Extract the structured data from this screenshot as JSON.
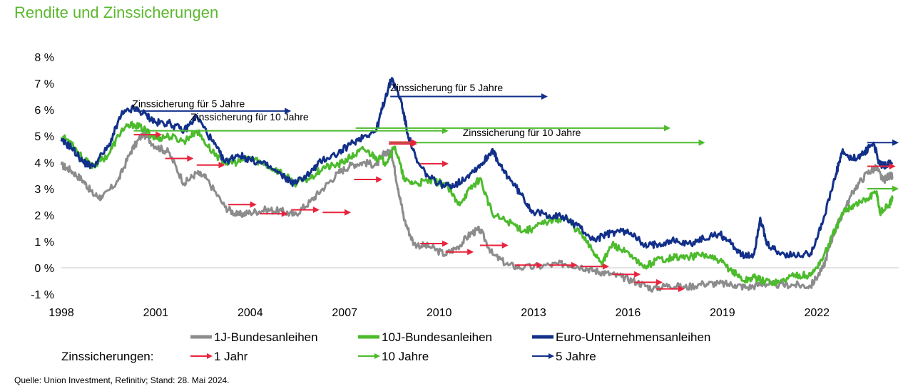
{
  "title": "Rendite und Zinssicherungen",
  "source": "Quelle: Union Investment, Refinitiv; Stand: 28. Mai 2024.",
  "legend": {
    "prefix": "Zinssicherungen:",
    "series": [
      "1J-Bundesanleihen",
      "10J-Bundesanleihen",
      "Euro-Unternehmensanleihen"
    ],
    "hedges": [
      "1 Jahr",
      "10 Jahre",
      "5 Jahre"
    ]
  },
  "colors": {
    "gray": "#8c8c8c",
    "green": "#4cbb2c",
    "blue": "#12308a",
    "red": "#e8233d",
    "title": "#5cb82e"
  },
  "chart_data": {
    "type": "line",
    "x_range": [
      1998,
      2024.6
    ],
    "ylim": [
      -1,
      8
    ],
    "x_ticks": [
      "1998",
      "2001",
      "2004",
      "2007",
      "2010",
      "2013",
      "2016",
      "2019",
      "2022"
    ],
    "x_tick_values": [
      1998,
      2001,
      2004,
      2007,
      2010,
      2013,
      2016,
      2019,
      2022
    ],
    "y_ticks": [
      "-1 %",
      "0 %",
      "1 %",
      "2 %",
      "3 %",
      "4 %",
      "5 %",
      "6 %",
      "7 %",
      "8 %"
    ],
    "y_tick_values": [
      -1,
      0,
      1,
      2,
      3,
      4,
      5,
      6,
      7,
      8
    ],
    "series": [
      {
        "name": "Euro-Unternehmensanleihen",
        "color": "#12308a",
        "points": [
          [
            1998,
            4.8
          ],
          [
            1998.3,
            4.6
          ],
          [
            1998.7,
            4.0
          ],
          [
            1999,
            3.85
          ],
          [
            1999.5,
            4.6
          ],
          [
            1999.9,
            5.8
          ],
          [
            2000.3,
            6.05
          ],
          [
            2000.7,
            5.8
          ],
          [
            2001,
            5.5
          ],
          [
            2001.4,
            5.5
          ],
          [
            2001.9,
            5.2
          ],
          [
            2002.3,
            5.75
          ],
          [
            2002.8,
            4.8
          ],
          [
            2003.2,
            4.0
          ],
          [
            2003.6,
            4.3
          ],
          [
            2004,
            4.1
          ],
          [
            2004.5,
            3.9
          ],
          [
            2005,
            3.5
          ],
          [
            2005.4,
            3.2
          ],
          [
            2005.9,
            3.6
          ],
          [
            2006.3,
            4.1
          ],
          [
            2006.8,
            4.35
          ],
          [
            2007.2,
            4.7
          ],
          [
            2007.6,
            5.0
          ],
          [
            2008,
            5.2
          ],
          [
            2008.3,
            6.5
          ],
          [
            2008.5,
            7.2
          ],
          [
            2008.8,
            6.3
          ],
          [
            2009,
            5.1
          ],
          [
            2009.3,
            4.0
          ],
          [
            2009.7,
            3.4
          ],
          [
            2010.2,
            3.1
          ],
          [
            2010.6,
            3.2
          ],
          [
            2011,
            3.6
          ],
          [
            2011.4,
            4.0
          ],
          [
            2011.7,
            4.5
          ],
          [
            2011.9,
            3.9
          ],
          [
            2012.3,
            3.3
          ],
          [
            2012.7,
            2.6
          ],
          [
            2013,
            2.1
          ],
          [
            2013.5,
            2.0
          ],
          [
            2014,
            1.9
          ],
          [
            2014.5,
            1.5
          ],
          [
            2014.9,
            1.05
          ],
          [
            2015.3,
            1.25
          ],
          [
            2015.7,
            1.4
          ],
          [
            2016.2,
            1.3
          ],
          [
            2016.5,
            0.8
          ],
          [
            2016.9,
            0.9
          ],
          [
            2017.4,
            1.05
          ],
          [
            2017.9,
            0.9
          ],
          [
            2018.4,
            1.1
          ],
          [
            2018.9,
            1.3
          ],
          [
            2019.3,
            0.9
          ],
          [
            2019.7,
            0.4
          ],
          [
            2020,
            0.5
          ],
          [
            2020.2,
            1.9
          ],
          [
            2020.4,
            0.9
          ],
          [
            2020.8,
            0.55
          ],
          [
            2021.3,
            0.45
          ],
          [
            2021.8,
            0.55
          ],
          [
            2022.2,
            1.8
          ],
          [
            2022.6,
            3.5
          ],
          [
            2022.8,
            4.4
          ],
          [
            2023.1,
            4.1
          ],
          [
            2023.5,
            4.35
          ],
          [
            2023.8,
            4.75
          ],
          [
            2024.0,
            3.9
          ],
          [
            2024.2,
            3.9
          ],
          [
            2024.4,
            4.0
          ]
        ]
      },
      {
        "name": "10J-Bundesanleihen",
        "color": "#4cbb2c",
        "points": [
          [
            1998,
            4.95
          ],
          [
            1998.3,
            4.8
          ],
          [
            1998.7,
            4.1
          ],
          [
            1999,
            3.85
          ],
          [
            1999.5,
            4.3
          ],
          [
            1999.9,
            5.2
          ],
          [
            2000.3,
            5.45
          ],
          [
            2000.7,
            5.2
          ],
          [
            2001,
            4.9
          ],
          [
            2001.4,
            5.0
          ],
          [
            2001.9,
            4.8
          ],
          [
            2002.3,
            5.2
          ],
          [
            2002.8,
            4.4
          ],
          [
            2003.2,
            4.0
          ],
          [
            2003.6,
            4.0
          ],
          [
            2004,
            4.2
          ],
          [
            2004.5,
            3.9
          ],
          [
            2005,
            3.6
          ],
          [
            2005.4,
            3.2
          ],
          [
            2005.9,
            3.4
          ],
          [
            2006.3,
            3.8
          ],
          [
            2006.8,
            3.9
          ],
          [
            2007.2,
            4.2
          ],
          [
            2007.6,
            4.5
          ],
          [
            2008,
            4.2
          ],
          [
            2008.3,
            4.0
          ],
          [
            2008.6,
            4.6
          ],
          [
            2008.9,
            3.3
          ],
          [
            2009.3,
            3.2
          ],
          [
            2009.7,
            3.3
          ],
          [
            2010.2,
            3.2
          ],
          [
            2010.6,
            2.4
          ],
          [
            2011,
            3.0
          ],
          [
            2011.3,
            3.4
          ],
          [
            2011.7,
            2.0
          ],
          [
            2012.3,
            1.7
          ],
          [
            2012.7,
            1.4
          ],
          [
            2013,
            1.5
          ],
          [
            2013.5,
            1.8
          ],
          [
            2014,
            1.9
          ],
          [
            2014.5,
            1.3
          ],
          [
            2014.9,
            0.6
          ],
          [
            2015.2,
            0.2
          ],
          [
            2015.5,
            0.9
          ],
          [
            2015.9,
            0.6
          ],
          [
            2016.5,
            0.0
          ],
          [
            2016.9,
            0.3
          ],
          [
            2017.4,
            0.4
          ],
          [
            2017.9,
            0.4
          ],
          [
            2018.4,
            0.5
          ],
          [
            2018.9,
            0.25
          ],
          [
            2019.3,
            -0.1
          ],
          [
            2019.7,
            -0.5
          ],
          [
            2020,
            -0.35
          ],
          [
            2020.3,
            -0.5
          ],
          [
            2020.8,
            -0.55
          ],
          [
            2021.3,
            -0.25
          ],
          [
            2021.8,
            -0.3
          ],
          [
            2022.2,
            0.4
          ],
          [
            2022.6,
            1.5
          ],
          [
            2022.9,
            2.2
          ],
          [
            2023.2,
            2.4
          ],
          [
            2023.6,
            2.6
          ],
          [
            2023.9,
            2.9
          ],
          [
            2024.0,
            2.1
          ],
          [
            2024.3,
            2.4
          ],
          [
            2024.4,
            2.6
          ]
        ]
      },
      {
        "name": "1J-Bundesanleihen",
        "color": "#8c8c8c",
        "points": [
          [
            1998,
            3.9
          ],
          [
            1998.3,
            3.7
          ],
          [
            1998.7,
            3.3
          ],
          [
            1999,
            2.8
          ],
          [
            1999.3,
            2.65
          ],
          [
            1999.8,
            3.3
          ],
          [
            2000.2,
            4.4
          ],
          [
            2000.6,
            5.1
          ],
          [
            2001,
            4.6
          ],
          [
            2001.4,
            4.4
          ],
          [
            2001.9,
            3.2
          ],
          [
            2002.3,
            3.6
          ],
          [
            2002.6,
            3.4
          ],
          [
            2003.2,
            2.3
          ],
          [
            2003.6,
            2.0
          ],
          [
            2004,
            2.1
          ],
          [
            2004.5,
            2.2
          ],
          [
            2005,
            2.15
          ],
          [
            2005.4,
            2.0
          ],
          [
            2005.9,
            2.5
          ],
          [
            2006.3,
            3.0
          ],
          [
            2006.8,
            3.6
          ],
          [
            2007.2,
            3.9
          ],
          [
            2007.6,
            4.0
          ],
          [
            2008,
            3.9
          ],
          [
            2008.3,
            4.4
          ],
          [
            2008.5,
            4.3
          ],
          [
            2008.7,
            3.0
          ],
          [
            2008.9,
            1.8
          ],
          [
            2009.2,
            0.9
          ],
          [
            2009.7,
            0.8
          ],
          [
            2010.2,
            0.5
          ],
          [
            2010.6,
            0.8
          ],
          [
            2011,
            1.3
          ],
          [
            2011.3,
            1.45
          ],
          [
            2011.7,
            0.5
          ],
          [
            2012.2,
            0.1
          ],
          [
            2012.7,
            0.0
          ],
          [
            2013.5,
            0.1
          ],
          [
            2014,
            0.15
          ],
          [
            2014.5,
            0.05
          ],
          [
            2014.9,
            -0.1
          ],
          [
            2015.3,
            -0.2
          ],
          [
            2015.8,
            -0.35
          ],
          [
            2016.3,
            -0.55
          ],
          [
            2016.8,
            -0.8
          ],
          [
            2017.3,
            -0.65
          ],
          [
            2017.8,
            -0.75
          ],
          [
            2018.4,
            -0.6
          ],
          [
            2018.9,
            -0.6
          ],
          [
            2019.4,
            -0.65
          ],
          [
            2019.8,
            -0.75
          ],
          [
            2020.3,
            -0.6
          ],
          [
            2020.8,
            -0.65
          ],
          [
            2021.3,
            -0.65
          ],
          [
            2021.8,
            -0.7
          ],
          [
            2022.2,
            0.0
          ],
          [
            2022.5,
            1.2
          ],
          [
            2022.8,
            2.0
          ],
          [
            2023.2,
            3.0
          ],
          [
            2023.6,
            3.6
          ],
          [
            2023.9,
            3.8
          ],
          [
            2024.1,
            3.3
          ],
          [
            2024.3,
            3.5
          ],
          [
            2024.4,
            3.45
          ]
        ]
      }
    ],
    "annotations": [
      {
        "text": "Zinssicherung für 5 Jahre",
        "x": 2000.25,
        "y": 6.1,
        "color": "#000000"
      },
      {
        "text": "Zinssicherung für 10 Jahre",
        "x": 2002.1,
        "y": 5.6,
        "color": "#000000"
      },
      {
        "text": "Zinssicherung für 5 Jahre",
        "x": 2008.45,
        "y": 6.7,
        "color": "#000000"
      },
      {
        "text": "Zinssicherung für 10 Jahre",
        "x": 2010.75,
        "y": 5.0,
        "color": "#000000"
      }
    ],
    "hedge_arrows": [
      {
        "kind": "5 Jahre",
        "color": "#12308a",
        "x1": 2000.3,
        "x2": 2005.3,
        "y": 5.95
      },
      {
        "kind": "10 Jahre",
        "color": "#4cbb2c",
        "x1": 2000.3,
        "x2": 2010.3,
        "y": 5.2
      },
      {
        "kind": "5 Jahre",
        "color": "#12308a",
        "x1": 2008.45,
        "x2": 2013.45,
        "y": 6.5
      },
      {
        "kind": "10 Jahre",
        "color": "#4cbb2c",
        "x1": 2007.35,
        "x2": 2017.35,
        "y": 5.3
      },
      {
        "kind": "10 Jahre",
        "color": "#4cbb2c",
        "x1": 2008.45,
        "x2": 2018.45,
        "y": 4.75
      },
      {
        "kind": "5 Jahre",
        "color": "#12308a",
        "x1": 2023.6,
        "x2": 2024.6,
        "y": 4.75
      },
      {
        "kind": "10 Jahre",
        "color": "#4cbb2c",
        "x1": 2023.6,
        "x2": 2024.6,
        "y": 3.0
      },
      {
        "kind": "1 Jahr",
        "color": "#e8233d",
        "x1": 2000.3,
        "x2": 2001.2,
        "y": 5.05
      },
      {
        "kind": "1 Jahr",
        "color": "#e8233d",
        "x1": 2001.3,
        "x2": 2002.2,
        "y": 4.15
      },
      {
        "kind": "1 Jahr",
        "color": "#e8233d",
        "x1": 2002.3,
        "x2": 2003.2,
        "y": 3.9
      },
      {
        "kind": "1 Jahr",
        "color": "#e8233d",
        "x1": 2003.3,
        "x2": 2004.2,
        "y": 2.4
      },
      {
        "kind": "1 Jahr",
        "color": "#e8233d",
        "x1": 2004.3,
        "x2": 2005.2,
        "y": 2.05
      },
      {
        "kind": "1 Jahr",
        "color": "#e8233d",
        "x1": 2005.3,
        "x2": 2006.2,
        "y": 2.2
      },
      {
        "kind": "1 Jahr",
        "color": "#e8233d",
        "x1": 2006.3,
        "x2": 2007.2,
        "y": 2.1
      },
      {
        "kind": "1 Jahr",
        "color": "#e8233d",
        "x1": 2007.3,
        "x2": 2008.2,
        "y": 3.35
      },
      {
        "kind": "1 Jahr",
        "color": "#e8233d",
        "x1": 2008.4,
        "x2": 2009.3,
        "y": 4.7
      },
      {
        "kind": "1 Jahr",
        "color": "#e8233d",
        "x1": 2009.4,
        "x2": 2010.3,
        "y": 3.95
      },
      {
        "kind": "1 Jahr",
        "color": "#e8233d",
        "x1": 2008.4,
        "x2": 2009.3,
        "y": 4.77
      },
      {
        "kind": "1 Jahr",
        "color": "#e8233d",
        "x1": 2009.4,
        "x2": 2010.3,
        "y": 0.92
      },
      {
        "kind": "1 Jahr",
        "color": "#e8233d",
        "x1": 2010.2,
        "x2": 2011.1,
        "y": 0.6
      },
      {
        "kind": "1 Jahr",
        "color": "#e8233d",
        "x1": 2011.3,
        "x2": 2012.2,
        "y": 0.85
      },
      {
        "kind": "1 Jahr",
        "color": "#e8233d",
        "x1": 2012.4,
        "x2": 2013.3,
        "y": 0.1
      },
      {
        "kind": "1 Jahr",
        "color": "#e8233d",
        "x1": 2013.5,
        "x2": 2014.4,
        "y": 0.1
      },
      {
        "kind": "1 Jahr",
        "color": "#e8233d",
        "x1": 2014.5,
        "x2": 2015.4,
        "y": 0.05
      },
      {
        "kind": "1 Jahr",
        "color": "#e8233d",
        "x1": 2015.5,
        "x2": 2016.4,
        "y": -0.25
      },
      {
        "kind": "1 Jahr",
        "color": "#e8233d",
        "x1": 2016.2,
        "x2": 2017.1,
        "y": -0.55
      },
      {
        "kind": "1 Jahr",
        "color": "#e8233d",
        "x1": 2016.9,
        "x2": 2017.8,
        "y": -0.8
      },
      {
        "kind": "1 Jahr",
        "color": "#e8233d",
        "x1": 2023.6,
        "x2": 2024.5,
        "y": 3.85
      }
    ]
  }
}
